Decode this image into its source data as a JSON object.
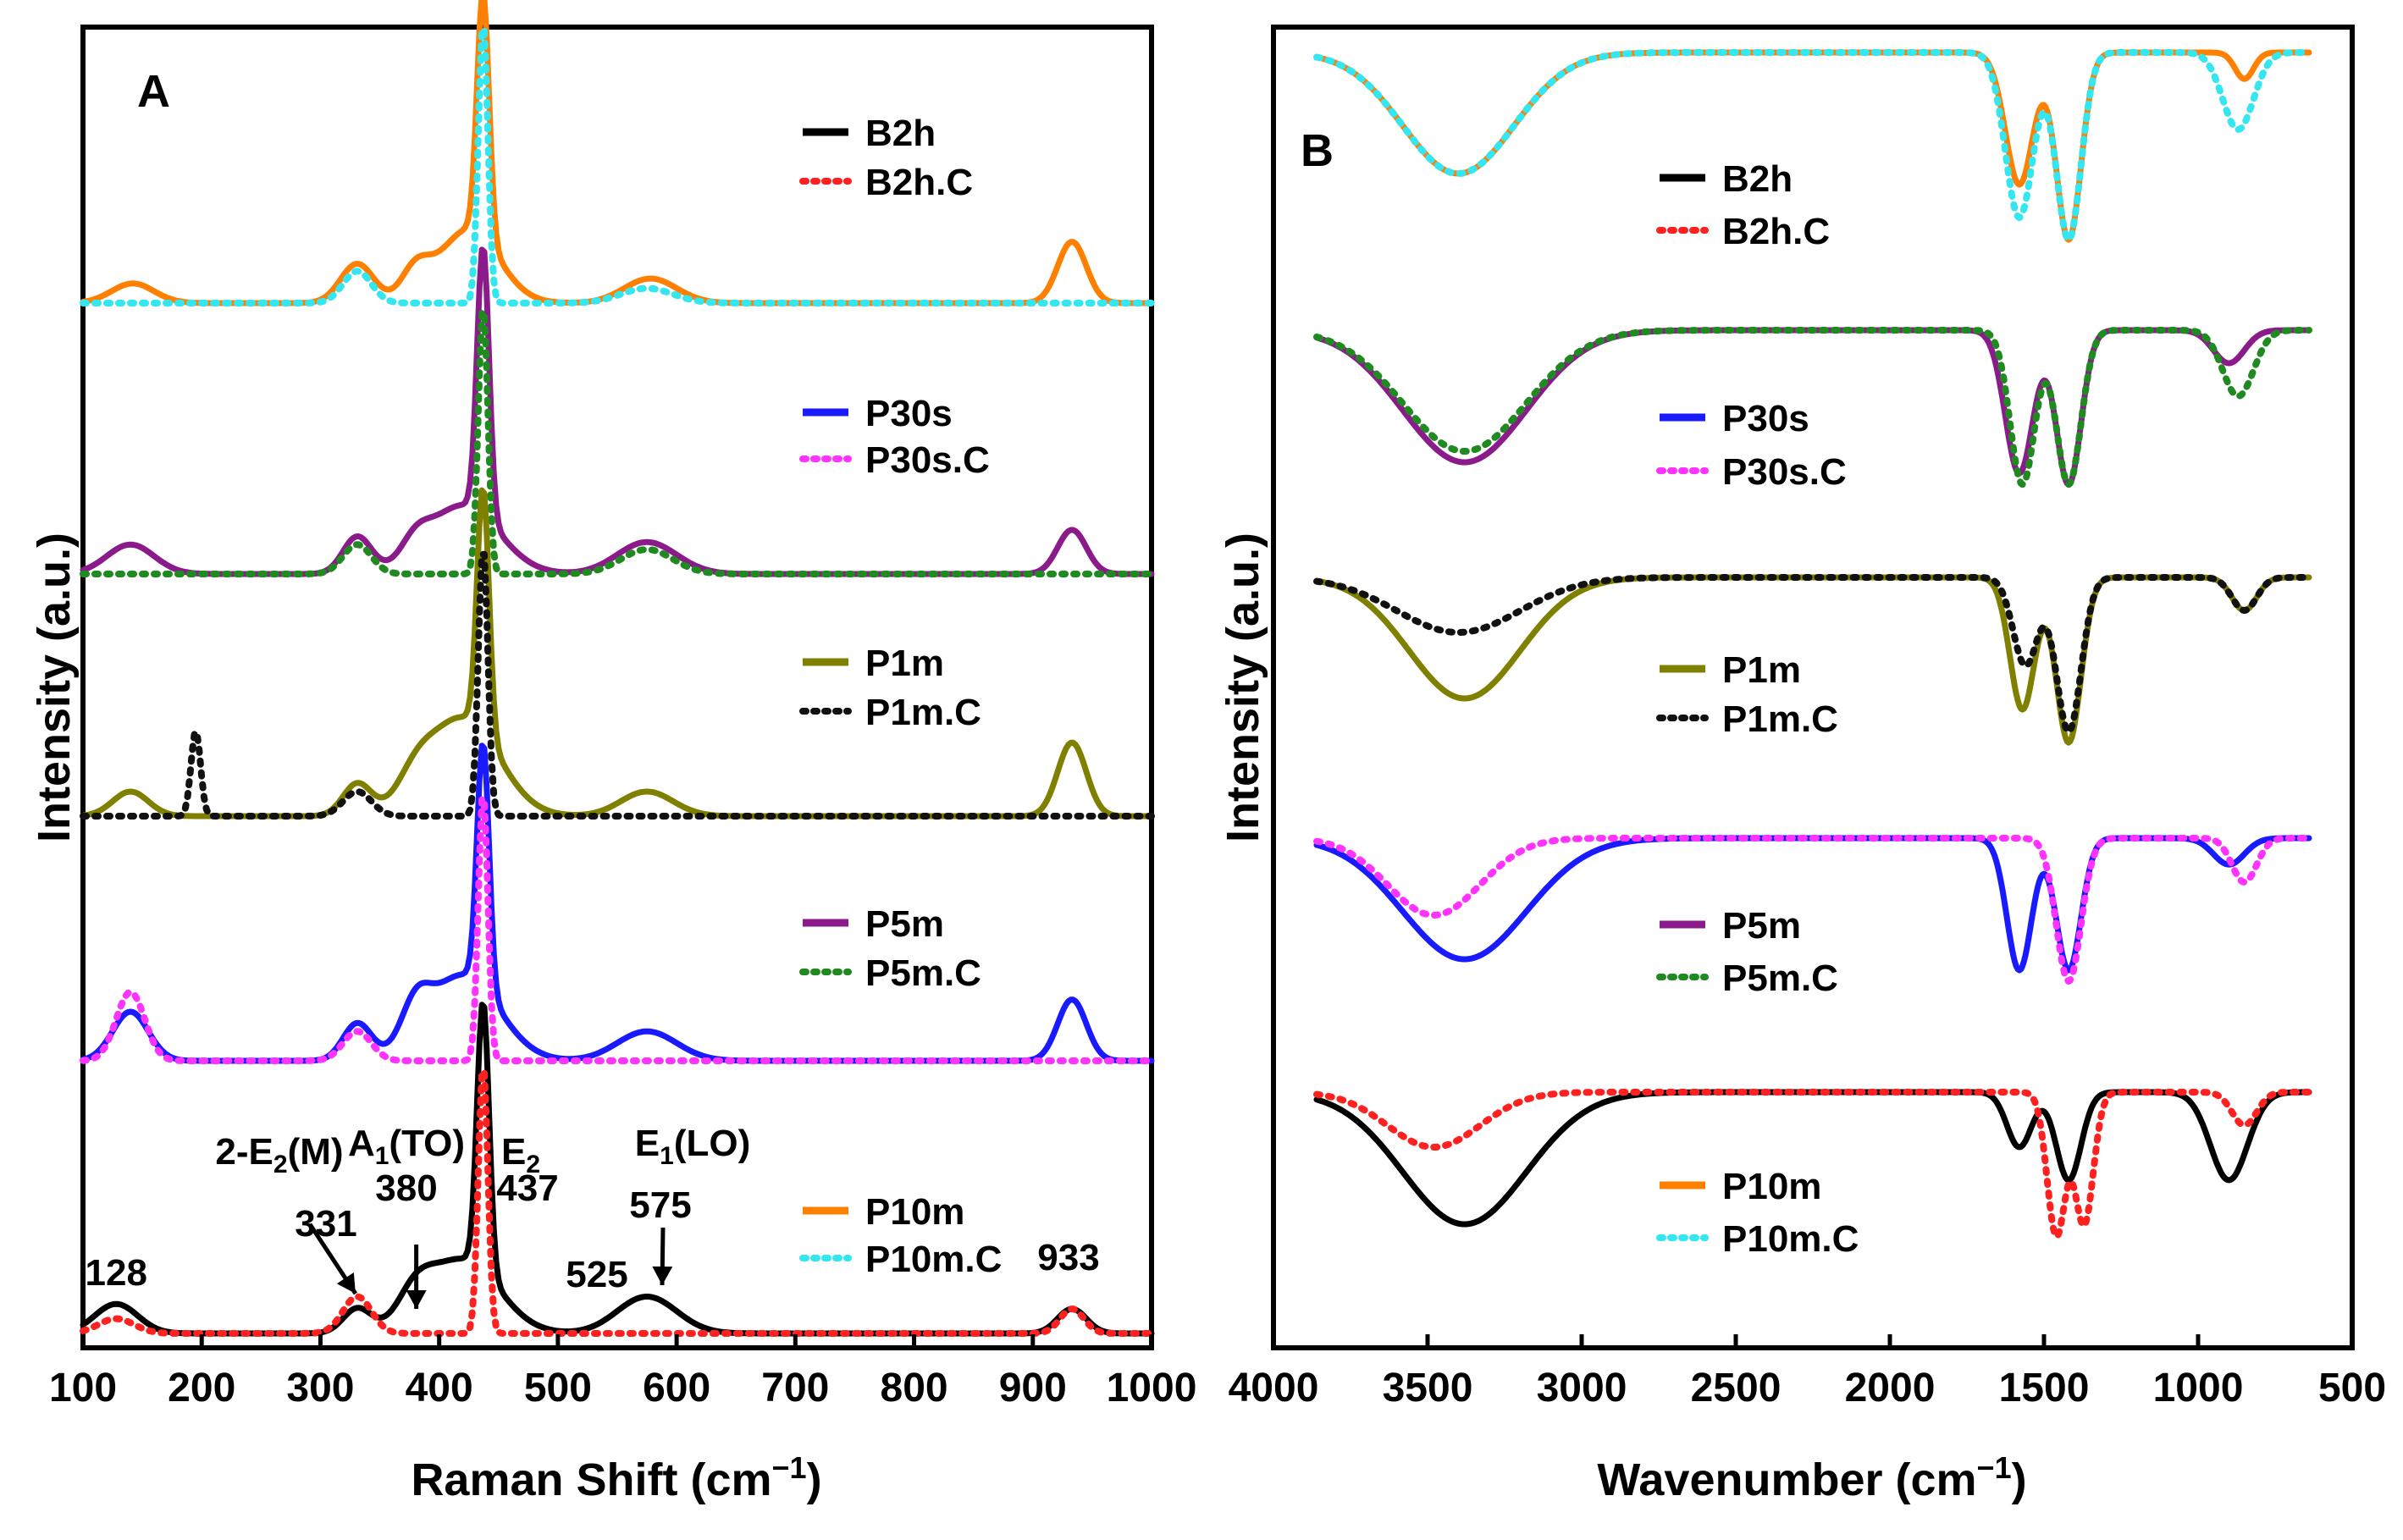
{
  "chart_data": [
    {
      "panel": "A",
      "type": "line",
      "xlabel": "Raman Shift (cm",
      "xlabel_sup": "−1",
      "xlabel_end": ")",
      "ylabel": "Intensity (a.u.)",
      "xlim": [
        100,
        1000
      ],
      "xticks": [
        100,
        200,
        300,
        400,
        500,
        600,
        700,
        800,
        900,
        1000
      ],
      "series": [
        {
          "name": "P10m",
          "color": "#ff8000",
          "style": "solid",
          "offset": 4,
          "peaks": [
            [
              142,
              18,
              0.08
            ],
            [
              331,
              14,
              0.16
            ],
            [
              380,
              12,
              0.12
            ],
            [
              437,
              5,
              1.0
            ],
            [
              425,
              25,
              0.3
            ],
            [
              578,
              22,
              0.1
            ],
            [
              933,
              12,
              0.25
            ]
          ]
        },
        {
          "name": "P10m.C",
          "color": "#33e6f0",
          "style": "dotted",
          "offset": 4,
          "peaks": [
            [
              331,
              12,
              0.13
            ],
            [
              437,
              4,
              1.15
            ],
            [
              575,
              22,
              0.06
            ]
          ]
        },
        {
          "name": "P5m",
          "color": "#8b1a8b",
          "style": "solid",
          "offset": 3,
          "peaks": [
            [
              140,
              20,
              0.12
            ],
            [
              331,
              12,
              0.15
            ],
            [
              380,
              12,
              0.08
            ],
            [
              437,
              5,
              1.1
            ],
            [
              420,
              30,
              0.28
            ],
            [
              575,
              25,
              0.13
            ],
            [
              933,
              12,
              0.18
            ]
          ]
        },
        {
          "name": "P5m.C",
          "color": "#1f8a1f",
          "style": "dotted",
          "offset": 3,
          "peaks": [
            [
              331,
              12,
              0.12
            ],
            [
              437,
              4,
              1.1
            ],
            [
              575,
              22,
              0.1
            ]
          ]
        },
        {
          "name": "P1m",
          "color": "#808000",
          "style": "solid",
          "offset": 2,
          "peaks": [
            [
              140,
              15,
              0.1
            ],
            [
              331,
              12,
              0.13
            ],
            [
              380,
              15,
              0.1
            ],
            [
              437,
              5,
              1.0
            ],
            [
              420,
              30,
              0.4
            ],
            [
              575,
              22,
              0.1
            ],
            [
              933,
              12,
              0.3
            ]
          ]
        },
        {
          "name": "P1m.C",
          "color": "#111111",
          "style": "dotted",
          "offset": 2,
          "peaks": [
            [
              195,
              4,
              0.35
            ],
            [
              331,
              12,
              0.1
            ],
            [
              437,
              4,
              1.1
            ]
          ]
        },
        {
          "name": "P30s",
          "color": "#1a1aff",
          "style": "solid",
          "offset": 1,
          "peaks": [
            [
              140,
              15,
              0.2
            ],
            [
              331,
              12,
              0.15
            ],
            [
              380,
              12,
              0.15
            ],
            [
              437,
              5,
              1.0
            ],
            [
              420,
              30,
              0.35
            ],
            [
              575,
              25,
              0.12
            ],
            [
              933,
              12,
              0.25
            ]
          ]
        },
        {
          "name": "P30s.C",
          "color": "#ff33ff",
          "style": "dotted",
          "offset": 1,
          "peaks": [
            [
              140,
              12,
              0.28
            ],
            [
              331,
              12,
              0.12
            ],
            [
              437,
              4,
              1.1
            ]
          ]
        },
        {
          "name": "B2h",
          "color": "#000000",
          "style": "solid",
          "offset": 0,
          "peaks": [
            [
              128,
              18,
              0.12
            ],
            [
              331,
              12,
              0.1
            ],
            [
              380,
              15,
              0.12
            ],
            [
              437,
              5,
              1.1
            ],
            [
              420,
              30,
              0.3
            ],
            [
              575,
              25,
              0.15
            ],
            [
              933,
              12,
              0.1
            ]
          ]
        },
        {
          "name": "B2h.C",
          "color": "#ff2020",
          "style": "dotted",
          "offset": 0,
          "peaks": [
            [
              128,
              15,
              0.06
            ],
            [
              331,
              12,
              0.15
            ],
            [
              437,
              4,
              1.1
            ],
            [
              933,
              10,
              0.1
            ]
          ]
        }
      ],
      "annotations": [
        {
          "label": "128",
          "x": 128
        },
        {
          "label": "2-E",
          "sub": "2",
          "tail": "(M)",
          "x": 331
        },
        {
          "label": "331",
          "x": 331
        },
        {
          "label": "A",
          "sub": "1",
          "tail": "(TO)",
          "x": 380
        },
        {
          "label": "380",
          "x": 380
        },
        {
          "label": "E",
          "sub": "2",
          "tail": "",
          "x": 437
        },
        {
          "label": "437",
          "x": 437
        },
        {
          "label": "525",
          "x": 525
        },
        {
          "label": "E",
          "sub": "1",
          "tail": "(LO)",
          "x": 575
        },
        {
          "label": "575",
          "x": 575
        },
        {
          "label": "933",
          "x": 933
        }
      ]
    },
    {
      "panel": "B",
      "type": "line",
      "xlabel": "Wavenumber (cm",
      "xlabel_sup": "−1",
      "xlabel_end": ")",
      "ylabel": "Intensity (a.u.)",
      "xlim": [
        4000,
        500
      ],
      "xticks": [
        4000,
        3500,
        3000,
        2500,
        2000,
        1500,
        1000,
        500
      ],
      "series": [
        {
          "name": "P10m",
          "color": "#ff8000",
          "style": "solid",
          "offset": 4,
          "bands": [
            [
              3400,
              180,
              0.55
            ],
            [
              1580,
              45,
              0.6
            ],
            [
              1420,
              40,
              0.85
            ],
            [
              850,
              30,
              0.12
            ]
          ]
        },
        {
          "name": "P10m.C",
          "color": "#33e6f0",
          "style": "dotted",
          "offset": 4,
          "bands": [
            [
              3400,
              180,
              0.55
            ],
            [
              1580,
              45,
              0.75
            ],
            [
              1420,
              40,
              0.85
            ],
            [
              870,
              50,
              0.35
            ]
          ]
        },
        {
          "name": "P5m",
          "color": "#8b1a8b",
          "style": "solid",
          "offset": 3,
          "bands": [
            [
              3380,
              200,
              0.6
            ],
            [
              1580,
              45,
              0.65
            ],
            [
              1420,
              40,
              0.7
            ],
            [
              900,
              50,
              0.15
            ]
          ]
        },
        {
          "name": "P5m.C",
          "color": "#1f8a1f",
          "style": "dotted",
          "offset": 3,
          "bands": [
            [
              3380,
              200,
              0.55
            ],
            [
              1570,
              40,
              0.7
            ],
            [
              1420,
              40,
              0.7
            ],
            [
              870,
              50,
              0.3
            ]
          ]
        },
        {
          "name": "P1m",
          "color": "#808000",
          "style": "solid",
          "offset": 2,
          "bands": [
            [
              3380,
              180,
              0.55
            ],
            [
              1570,
              40,
              0.6
            ],
            [
              1420,
              40,
              0.75
            ],
            [
              850,
              40,
              0.15
            ]
          ]
        },
        {
          "name": "P1m.C",
          "color": "#111111",
          "style": "dotted",
          "offset": 2,
          "bands": [
            [
              3400,
              200,
              0.25
            ],
            [
              1560,
              40,
              0.4
            ],
            [
              1420,
              40,
              0.7
            ],
            [
              850,
              40,
              0.15
            ]
          ]
        },
        {
          "name": "P30s",
          "color": "#1a1aff",
          "style": "solid",
          "offset": 1,
          "bands": [
            [
              3380,
              200,
              0.55
            ],
            [
              1580,
              40,
              0.6
            ],
            [
              1420,
              40,
              0.6
            ],
            [
              900,
              50,
              0.12
            ]
          ]
        },
        {
          "name": "P30s.C",
          "color": "#ff33ff",
          "style": "dotted",
          "offset": 1,
          "bands": [
            [
              3480,
              150,
              0.35
            ],
            [
              1420,
              40,
              0.65
            ],
            [
              850,
              40,
              0.2
            ]
          ]
        },
        {
          "name": "B2h",
          "color": "#000000",
          "style": "solid",
          "offset": 0,
          "bands": [
            [
              3380,
              200,
              0.6
            ],
            [
              1580,
              40,
              0.25
            ],
            [
              1420,
              40,
              0.4
            ],
            [
              900,
              60,
              0.4
            ]
          ]
        },
        {
          "name": "B2h.C",
          "color": "#ff2020",
          "style": "dotted",
          "offset": 0,
          "bands": [
            [
              3480,
              150,
              0.25
            ],
            [
              1460,
              30,
              0.65
            ],
            [
              1370,
              30,
              0.6
            ],
            [
              850,
              40,
              0.15
            ]
          ]
        }
      ]
    }
  ]
}
